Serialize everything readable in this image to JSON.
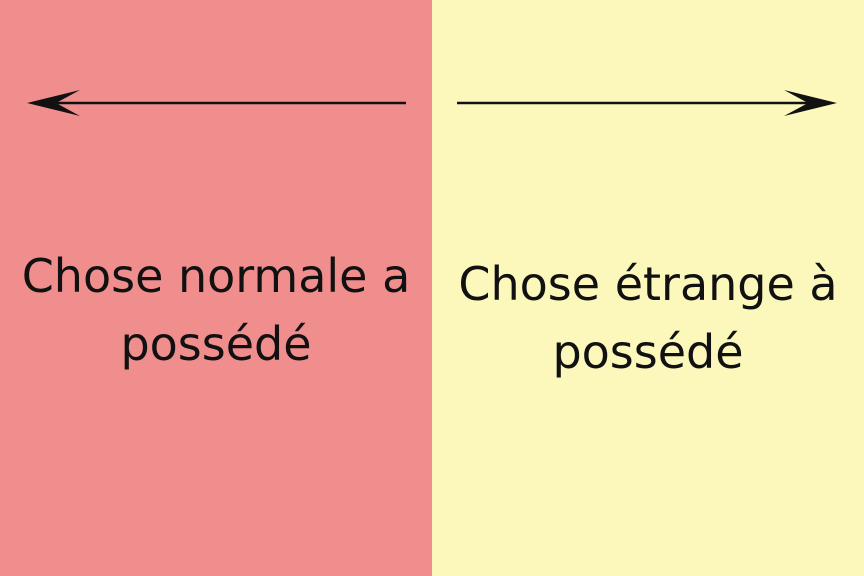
{
  "colors": {
    "left_background": "#F08E8E",
    "right_background": "#FCF8BB",
    "arrow": "#111111",
    "text": "#111111"
  },
  "left": {
    "arrow": "arrow-left-icon",
    "label_line1": "Chose normale a",
    "label_line2": "possédé"
  },
  "right": {
    "arrow": "arrow-right-icon",
    "label_line1": "Chose étrange à",
    "label_line2": "possédé"
  }
}
